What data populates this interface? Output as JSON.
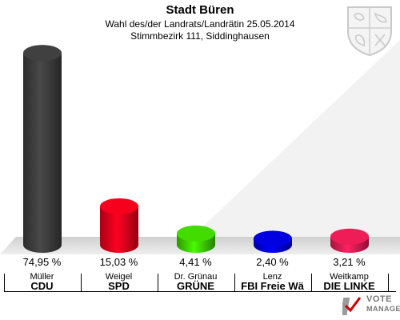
{
  "header": {
    "title": "Stadt Büren",
    "subtitle1": "Wahl des/der Landrats/Landrätin 25.05.2014",
    "subtitle2": "Stimmbezirk 111, Siddinghausen"
  },
  "chart_data": {
    "type": "bar",
    "title": "Stadt Büren",
    "xlabel": "",
    "ylabel": "",
    "ylim": [
      0,
      100
    ],
    "grid": false,
    "categories": [
      "Müller",
      "Weigel",
      "Dr. Grünau",
      "Lenz",
      "Weitkamp"
    ],
    "values": [
      74.95,
      15.03,
      4.41,
      2.4,
      3.21
    ],
    "bars": [
      {
        "candidate": "Müller",
        "party": "CDU",
        "value": 74.95,
        "label": "74,95 %",
        "color": "#3a3a3a"
      },
      {
        "candidate": "Weigel",
        "party": "SPD",
        "value": 15.03,
        "label": "15,03 %",
        "color": "#e0001a"
      },
      {
        "candidate": "Dr. Grünau",
        "party": "GRÜNE",
        "value": 4.41,
        "label": "4,41 %",
        "color": "#3cc800"
      },
      {
        "candidate": "Lenz",
        "party": "FBI Freie Wä",
        "value": 2.4,
        "label": "2,40 %",
        "color": "#0000cc"
      },
      {
        "candidate": "Weitkamp",
        "party": "DIE LINKE",
        "value": 3.21,
        "label": "3,21 %",
        "color": "#d81a50"
      }
    ]
  },
  "logo": {
    "line1": "VOTE",
    "line2": "MANAGER"
  }
}
